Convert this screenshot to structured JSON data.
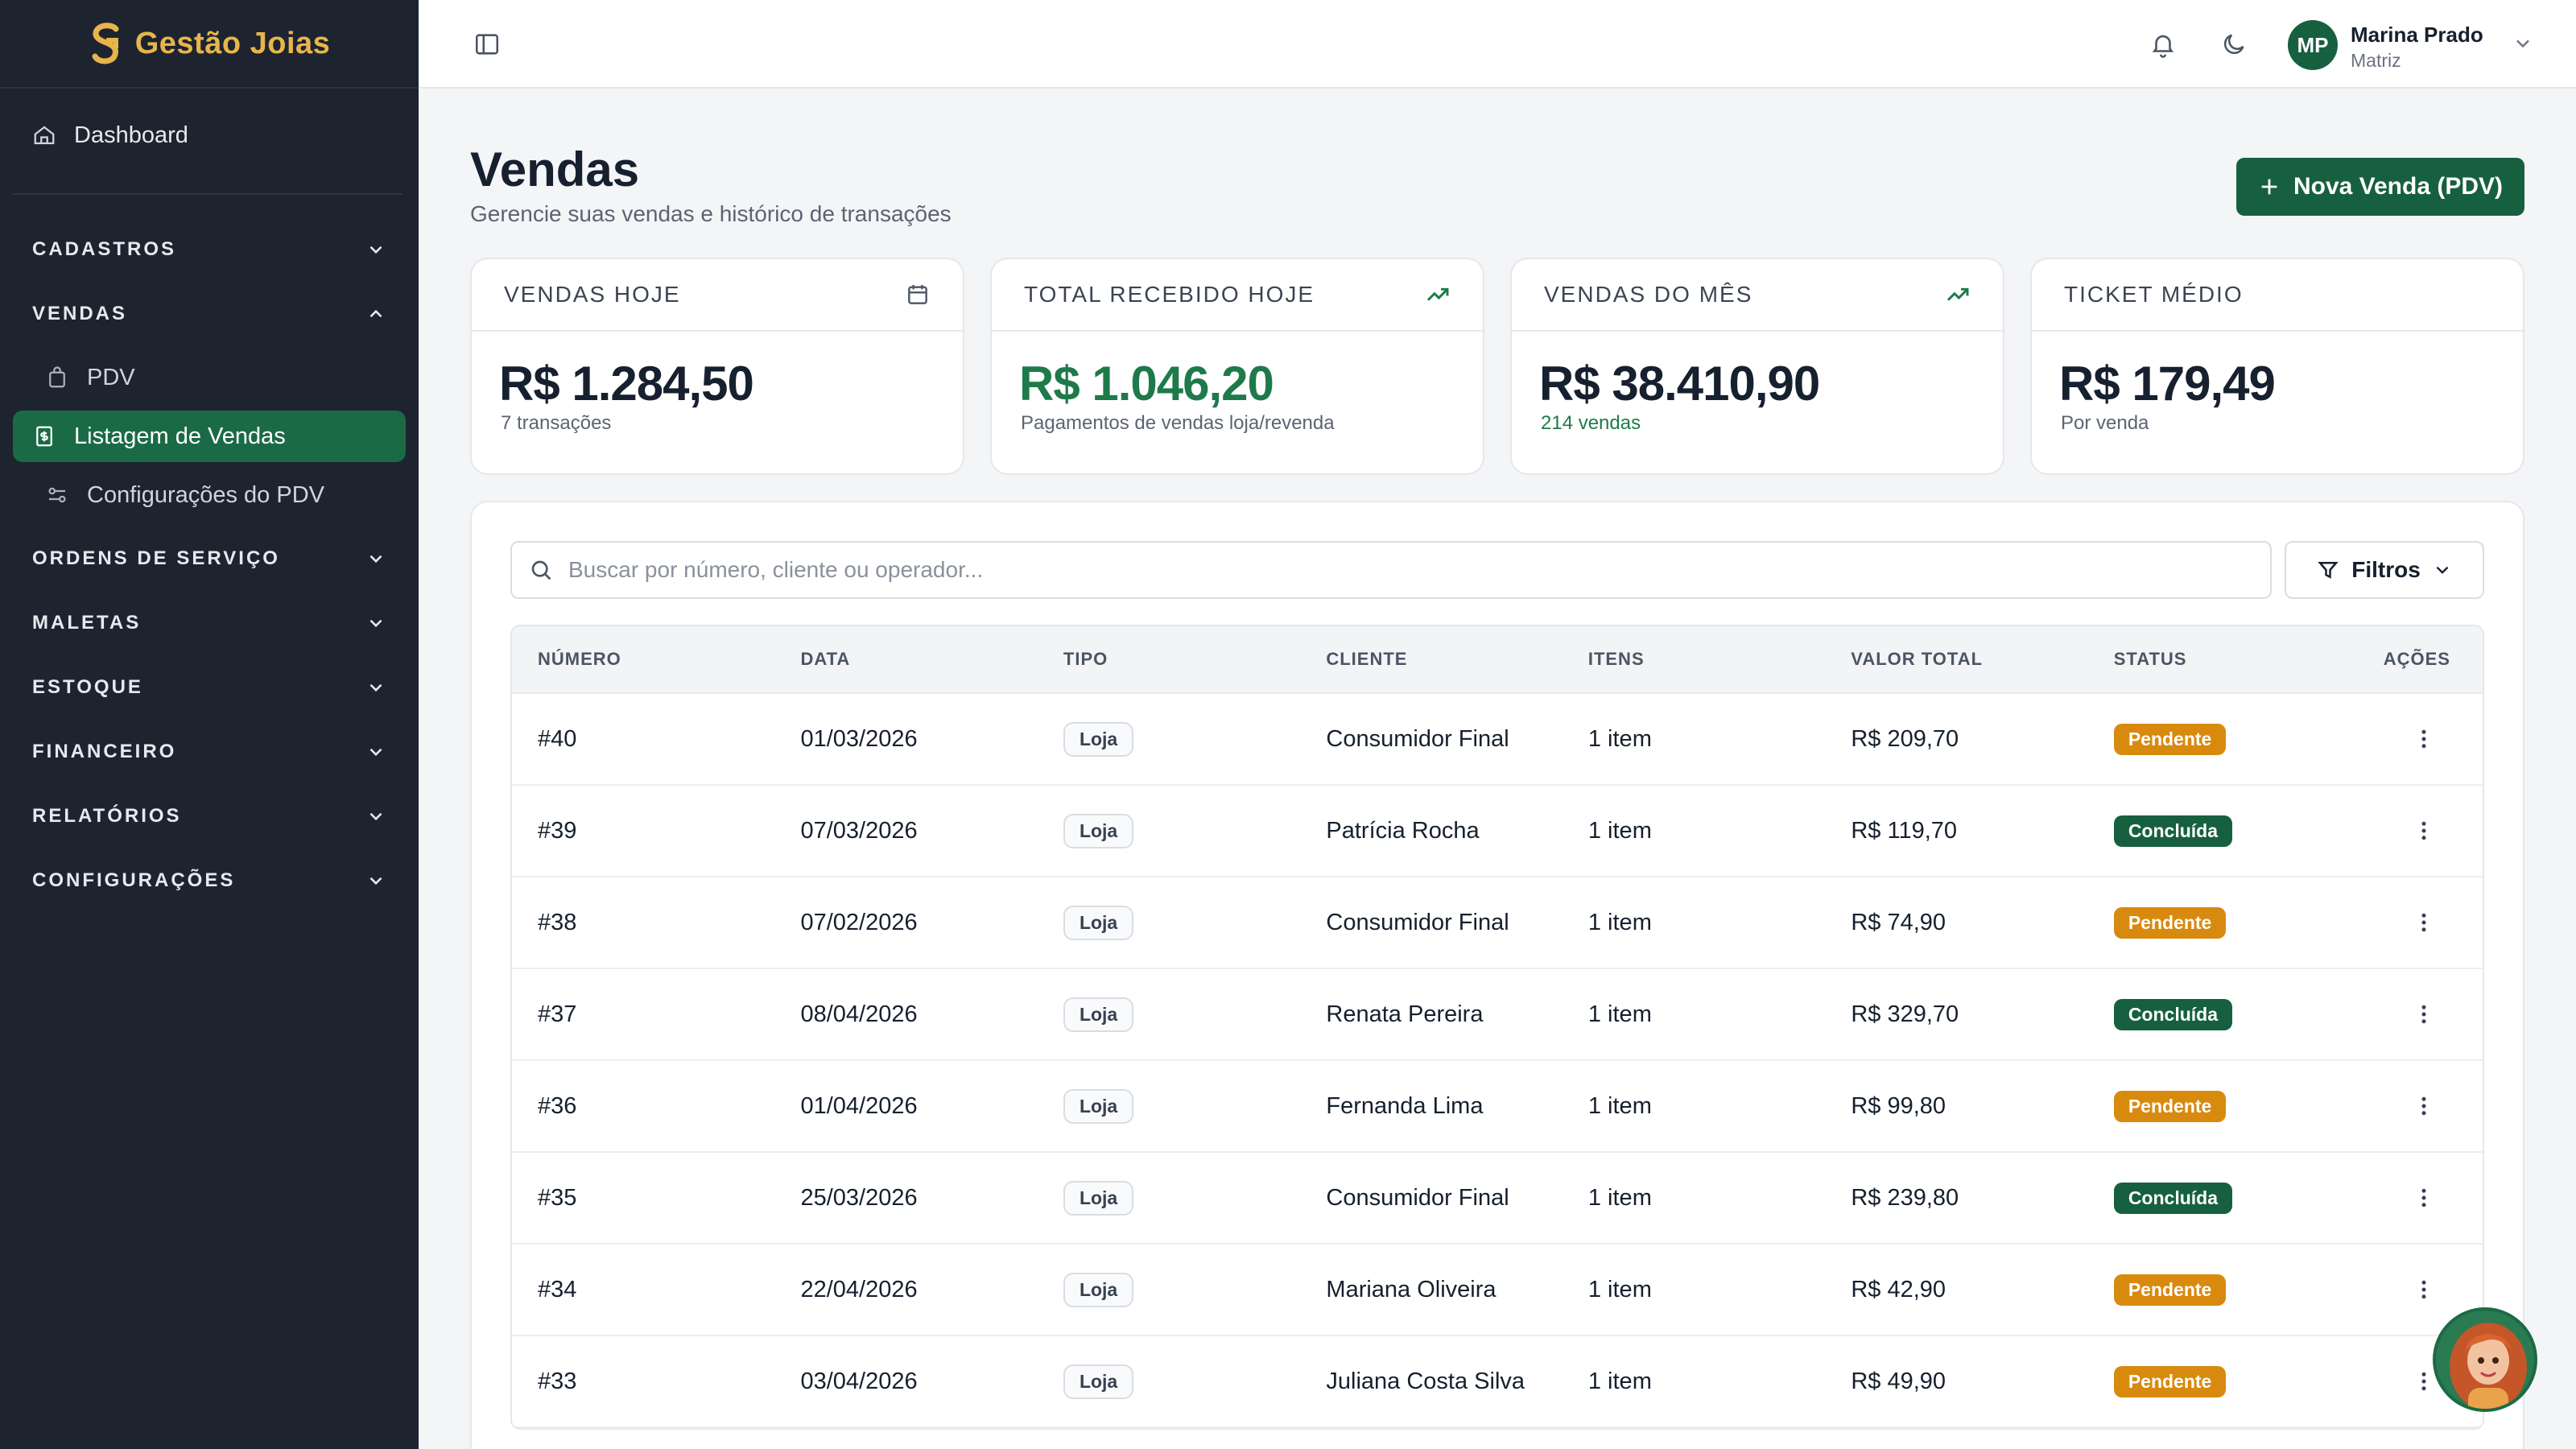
{
  "brand": {
    "name": "Gestão Joias",
    "color": "#e7b54a"
  },
  "sidebar": {
    "dashboard": "Dashboard",
    "groups": {
      "cadastros": "CADASTROS",
      "vendas": "VENDAS",
      "ordens": "ORDENS DE SERVIÇO",
      "maletas": "MALETAS",
      "estoque": "ESTOQUE",
      "financeiro": "FINANCEIRO",
      "relatorios": "RELATÓRIOS",
      "configuracoes": "CONFIGURAÇÕES"
    },
    "vendas_items": {
      "pdv": "PDV",
      "listagem": "Listagem de Vendas",
      "config_pdv": "Configurações do PDV"
    },
    "active_color": "#1a6b45"
  },
  "topbar": {
    "user_initials": "MP",
    "user_name": "Marina Prado",
    "user_role": "Matriz"
  },
  "page": {
    "title": "Vendas",
    "subtitle": "Gerencie suas vendas e histórico de transações",
    "new_button": "Nova Venda (PDV)"
  },
  "cards": [
    {
      "label": "VENDAS HOJE",
      "value": "R$ 1.284,50",
      "note": "7 transações",
      "icon": "calendar-icon"
    },
    {
      "label": "TOTAL RECEBIDO HOJE",
      "value": "R$ 1.046,20",
      "note": "Pagamentos de vendas loja/revenda",
      "icon": "trending-up-icon"
    },
    {
      "label": "VENDAS DO MÊS",
      "value": "R$ 38.410,90",
      "note": "214 vendas",
      "icon": "trending-up-icon"
    },
    {
      "label": "TICKET MÉDIO",
      "value": "R$ 179,49",
      "note": "Por venda"
    }
  ],
  "search": {
    "placeholder": "Buscar por número, cliente ou operador..."
  },
  "filters_label": "Filtros",
  "table": {
    "headers": [
      "NÚMERO",
      "DATA",
      "TIPO",
      "CLIENTE",
      "ITENS",
      "VALOR TOTAL",
      "STATUS",
      "AÇÕES"
    ],
    "rows": [
      {
        "numero": "#40",
        "data": "01/03/2026",
        "tipo": "Loja",
        "cliente": "Consumidor Final",
        "itens": "1 item",
        "valor": "R$ 209,70",
        "status": "Pendente"
      },
      {
        "numero": "#39",
        "data": "07/03/2026",
        "tipo": "Loja",
        "cliente": "Patrícia Rocha",
        "itens": "1 item",
        "valor": "R$ 119,70",
        "status": "Concluída"
      },
      {
        "numero": "#38",
        "data": "07/02/2026",
        "tipo": "Loja",
        "cliente": "Consumidor Final",
        "itens": "1 item",
        "valor": "R$ 74,90",
        "status": "Pendente"
      },
      {
        "numero": "#37",
        "data": "08/04/2026",
        "tipo": "Loja",
        "cliente": "Renata Pereira",
        "itens": "1 item",
        "valor": "R$ 329,70",
        "status": "Concluída"
      },
      {
        "numero": "#36",
        "data": "01/04/2026",
        "tipo": "Loja",
        "cliente": "Fernanda Lima",
        "itens": "1 item",
        "valor": "R$ 99,80",
        "status": "Pendente"
      },
      {
        "numero": "#35",
        "data": "25/03/2026",
        "tipo": "Loja",
        "cliente": "Consumidor Final",
        "itens": "1 item",
        "valor": "R$ 239,80",
        "status": "Concluída"
      },
      {
        "numero": "#34",
        "data": "22/04/2026",
        "tipo": "Loja",
        "cliente": "Mariana Oliveira",
        "itens": "1 item",
        "valor": "R$ 42,90",
        "status": "Pendente"
      },
      {
        "numero": "#33",
        "data": "03/04/2026",
        "tipo": "Loja",
        "cliente": "Juliana Costa Silva",
        "itens": "1 item",
        "valor": "R$ 49,90",
        "status": "Pendente"
      }
    ]
  },
  "colors": {
    "primary": "#17603f",
    "pending": "#d88a0f",
    "completed": "#17603f",
    "positive": "#1e7a4a"
  }
}
